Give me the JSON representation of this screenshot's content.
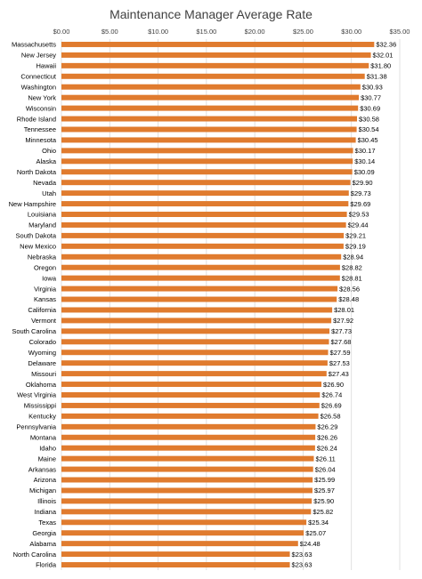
{
  "chart_data": {
    "type": "bar",
    "orientation": "horizontal",
    "title": "Maintenance Manager Average Rate",
    "xlabel": "",
    "ylabel": "",
    "xlim": [
      0,
      35
    ],
    "ticks": [
      "$0.00",
      "$5.00",
      "$10.00",
      "$15.00",
      "$20.00",
      "$25.00",
      "$30.00",
      "$35.00"
    ],
    "tick_values": [
      0,
      5,
      10,
      15,
      20,
      25,
      30,
      35
    ],
    "axis_position": "top",
    "grid": true,
    "bar_color": "#E07B2E",
    "categories": [
      "Massachusetts",
      "New Jersey",
      "Hawaii",
      "Connecticut",
      "Washington",
      "New York",
      "Wisconsin",
      "Rhode Island",
      "Tennessee",
      "Minnesota",
      "Ohio",
      "Alaska",
      "North Dakota",
      "Nevada",
      "Utah",
      "New Hampshire",
      "Louisiana",
      "Maryland",
      "South Dakota",
      "New Mexico",
      "Nebraska",
      "Oregon",
      "Iowa",
      "Virginia",
      "Kansas",
      "California",
      "Vermont",
      "South Carolina",
      "Colorado",
      "Wyoming",
      "Delaware",
      "Missouri",
      "Oklahoma",
      "West Virginia",
      "Mississippi",
      "Kentucky",
      "Pennsylvania",
      "Montana",
      "Idaho",
      "Maine",
      "Arkansas",
      "Arizona",
      "Michigan",
      "Illinois",
      "Indiana",
      "Texas",
      "Georgia",
      "Alabama",
      "North Carolina",
      "Florida"
    ],
    "values": [
      32.36,
      32.01,
      31.8,
      31.38,
      30.93,
      30.77,
      30.69,
      30.58,
      30.54,
      30.45,
      30.17,
      30.14,
      30.09,
      29.9,
      29.73,
      29.69,
      29.53,
      29.44,
      29.21,
      29.19,
      28.94,
      28.82,
      28.81,
      28.56,
      28.48,
      28.01,
      27.92,
      27.73,
      27.68,
      27.59,
      27.53,
      27.43,
      26.9,
      26.74,
      26.69,
      26.58,
      26.29,
      26.26,
      26.24,
      26.11,
      26.04,
      25.99,
      25.97,
      25.9,
      25.82,
      25.34,
      25.07,
      24.48,
      23.63,
      23.63
    ],
    "value_labels": [
      "$32.36",
      "$32.01",
      "$31.80",
      "$31.38",
      "$30.93",
      "$30.77",
      "$30.69",
      "$30.58",
      "$30.54",
      "$30.45",
      "$30.17",
      "$30.14",
      "$30.09",
      "$29.90",
      "$29.73",
      "$29.69",
      "$29.53",
      "$29.44",
      "$29.21",
      "$29.19",
      "$28.94",
      "$28.82",
      "$28.81",
      "$28.56",
      "$28.48",
      "$28.01",
      "$27.92",
      "$27.73",
      "$27.68",
      "$27.59",
      "$27.53",
      "$27.43",
      "$26.90",
      "$26.74",
      "$26.69",
      "$26.58",
      "$26.29",
      "$26.26",
      "$26.24",
      "$26.11",
      "$26.04",
      "$25.99",
      "$25.97",
      "$25.90",
      "$25.82",
      "$25.34",
      "$25.07",
      "$24.48",
      "$23.63",
      "$23.63"
    ]
  }
}
